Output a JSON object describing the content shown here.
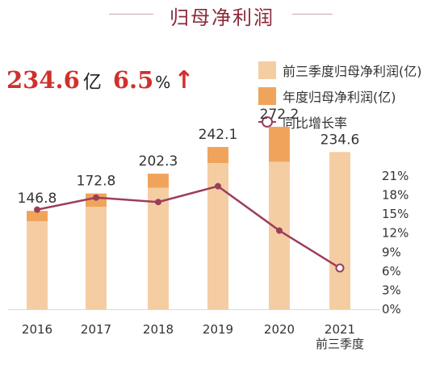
{
  "title": "归母净利润",
  "kpi": {
    "value": "234.6",
    "value_unit": "亿",
    "growth": "6.5",
    "growth_unit": "%",
    "trend_icon": "up-arrow-icon"
  },
  "legend": [
    {
      "label": "前三季度归母净利润(亿)",
      "color": "#f5cda3",
      "icon": "bar-swatch"
    },
    {
      "label": "年度归母净利润(亿)",
      "color": "#f0a45b",
      "icon": "bar-swatch"
    },
    {
      "label": "同比增长率",
      "color": "#9c3d5c",
      "icon": "line-marker-icon"
    }
  ],
  "chart_data": {
    "type": "bar",
    "categories": [
      "2016",
      "2017",
      "2018",
      "2019",
      "2020",
      "2021\n前三季度"
    ],
    "series": [
      {
        "name": "前三季度归母净利润(亿)",
        "type": "bar",
        "stack": "profit",
        "values": [
          131,
          153,
          181,
          218,
          220,
          234.6
        ],
        "color": "#f5cda3"
      },
      {
        "name": "年度归母净利润(亿)",
        "type": "bar",
        "stack": "profit",
        "values": [
          146.8,
          172.8,
          202.3,
          242.1,
          272.2,
          null
        ],
        "color": "#f0a45b"
      },
      {
        "name": "同比增长率",
        "type": "line",
        "axis": "right",
        "values": [
          15.7,
          17.6,
          16.9,
          19.4,
          12.4,
          6.5
        ],
        "color": "#9c3d5c"
      }
    ],
    "data_labels": [
      "146.8",
      "172.8",
      "202.3",
      "242.1",
      "272.2",
      "234.6"
    ],
    "right_axis": {
      "ticks": [
        "0%",
        "3%",
        "6%",
        "9%",
        "12%",
        "15%",
        "18%",
        "21%"
      ],
      "ylim": [
        0,
        21
      ]
    },
    "left_ylim": [
      0,
      330
    ],
    "grid": false,
    "legend_position": "top-right"
  }
}
